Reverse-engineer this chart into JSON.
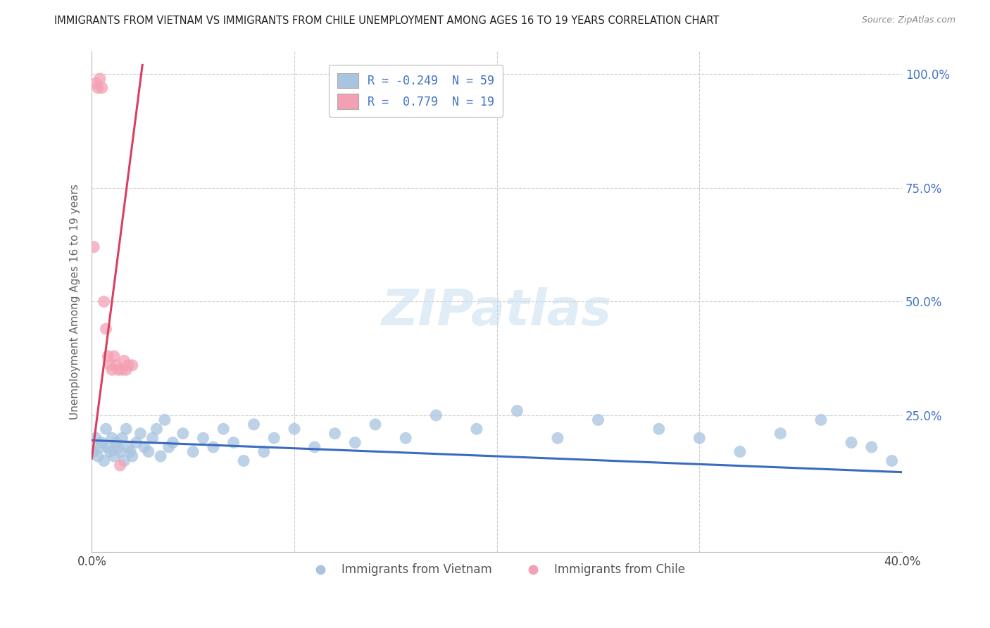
{
  "title": "IMMIGRANTS FROM VIETNAM VS IMMIGRANTS FROM CHILE UNEMPLOYMENT AMONG AGES 16 TO 19 YEARS CORRELATION CHART",
  "source": "Source: ZipAtlas.com",
  "ylabel": "Unemployment Among Ages 16 to 19 years",
  "xlim": [
    0.0,
    0.4
  ],
  "ylim": [
    -0.05,
    1.05
  ],
  "legend_label_r_vietnam": "R = -0.249  N = 59",
  "legend_label_r_chile": "R =  0.779  N = 19",
  "legend_label_vietnam": "Immigrants from Vietnam",
  "legend_label_chile": "Immigrants from Chile",
  "vietnam_color": "#a8c4e0",
  "chile_color": "#f4a0b4",
  "vietnam_line_color": "#3b6bbf",
  "chile_line_color": "#d94060",
  "r_vietnam": -0.249,
  "n_vietnam": 59,
  "r_chile": 0.779,
  "n_chile": 19,
  "watermark": "ZIPatlas",
  "background_color": "#ffffff",
  "grid_color": "#cccccc",
  "vietnam_scatter_x": [
    0.001,
    0.002,
    0.003,
    0.004,
    0.005,
    0.006,
    0.007,
    0.008,
    0.009,
    0.01,
    0.011,
    0.012,
    0.013,
    0.014,
    0.015,
    0.016,
    0.017,
    0.018,
    0.019,
    0.02,
    0.022,
    0.024,
    0.026,
    0.028,
    0.03,
    0.032,
    0.034,
    0.036,
    0.038,
    0.04,
    0.045,
    0.05,
    0.055,
    0.06,
    0.065,
    0.07,
    0.075,
    0.08,
    0.085,
    0.09,
    0.1,
    0.11,
    0.12,
    0.13,
    0.14,
    0.155,
    0.17,
    0.19,
    0.21,
    0.23,
    0.25,
    0.28,
    0.3,
    0.32,
    0.34,
    0.36,
    0.375,
    0.385,
    0.395
  ],
  "vietnam_scatter_y": [
    0.17,
    0.2,
    0.16,
    0.18,
    0.19,
    0.15,
    0.22,
    0.18,
    0.17,
    0.2,
    0.16,
    0.19,
    0.18,
    0.17,
    0.2,
    0.15,
    0.22,
    0.18,
    0.17,
    0.16,
    0.19,
    0.21,
    0.18,
    0.17,
    0.2,
    0.22,
    0.16,
    0.24,
    0.18,
    0.19,
    0.21,
    0.17,
    0.2,
    0.18,
    0.22,
    0.19,
    0.15,
    0.23,
    0.17,
    0.2,
    0.22,
    0.18,
    0.21,
    0.19,
    0.23,
    0.2,
    0.25,
    0.22,
    0.26,
    0.2,
    0.24,
    0.22,
    0.2,
    0.17,
    0.21,
    0.24,
    0.19,
    0.18,
    0.15
  ],
  "chile_scatter_x": [
    0.001,
    0.002,
    0.003,
    0.004,
    0.005,
    0.006,
    0.007,
    0.008,
    0.009,
    0.01,
    0.011,
    0.012,
    0.013,
    0.014,
    0.015,
    0.016,
    0.017,
    0.018,
    0.02
  ],
  "chile_scatter_y": [
    0.62,
    0.98,
    0.97,
    0.99,
    0.97,
    0.5,
    0.44,
    0.38,
    0.36,
    0.35,
    0.38,
    0.36,
    0.35,
    0.14,
    0.35,
    0.37,
    0.35,
    0.36,
    0.36
  ],
  "vietnam_line_x": [
    0.0,
    0.4
  ],
  "vietnam_line_y": [
    0.195,
    0.125
  ],
  "chile_line_x": [
    0.0,
    0.025
  ],
  "chile_line_y": [
    0.155,
    1.02
  ]
}
